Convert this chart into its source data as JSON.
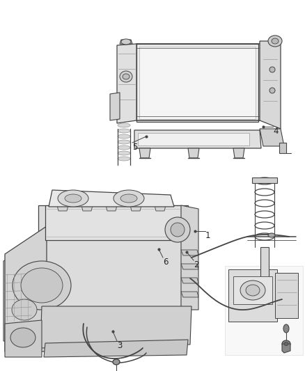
{
  "background_color": "#ffffff",
  "fig_width": 4.38,
  "fig_height": 5.33,
  "dpi": 100,
  "line_color": "#444444",
  "light_gray": "#cccccc",
  "mid_gray": "#999999",
  "dark_gray": "#666666",
  "very_light": "#eeeeee",
  "text_color": "#222222",
  "callout_fontsize": 8.5,
  "callouts": {
    "1": {
      "dot": [
        0.638,
        0.498
      ],
      "text": [
        0.658,
        0.498
      ]
    },
    "2": {
      "dot": [
        0.617,
        0.455
      ],
      "text": [
        0.635,
        0.443
      ]
    },
    "3": {
      "dot": [
        0.276,
        0.105
      ],
      "text": [
        0.283,
        0.09
      ]
    },
    "4": {
      "dot": [
        0.818,
        0.717
      ],
      "text": [
        0.84,
        0.717
      ]
    },
    "5": {
      "dot": [
        0.323,
        0.607
      ],
      "text": [
        0.295,
        0.598
      ]
    },
    "6": {
      "dot": [
        0.488,
        0.472
      ],
      "text": [
        0.497,
        0.46
      ]
    }
  }
}
